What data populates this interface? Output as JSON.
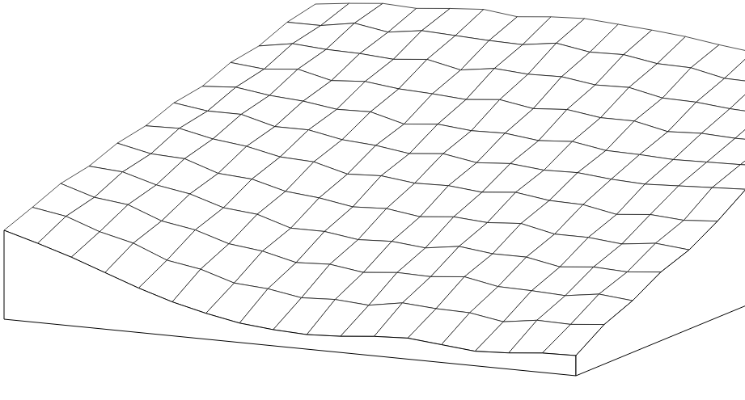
{
  "chart_data": {
    "type": "surface",
    "color": "#000000",
    "grid": false,
    "tick_labels": false,
    "z": [
      [
        110,
        98,
        85,
        70,
        55,
        42,
        32,
        24,
        20,
        18,
        20,
        24,
        26,
        22,
        18,
        20,
        24,
        25
      ],
      [
        124,
        117,
        102,
        92,
        75,
        68,
        55,
        52,
        45,
        47,
        44,
        51,
        48,
        47,
        40,
        46,
        45,
        49
      ],
      [
        139,
        126,
        121,
        105,
        98,
        85,
        80,
        70,
        72,
        66,
        70,
        69,
        73,
        65,
        64,
        62,
        68,
        64
      ],
      [
        146,
        143,
        131,
        124,
        111,
        107,
        94,
        94,
        88,
        90,
        86,
        92,
        87,
        87,
        79,
        83,
        81,
        85
      ],
      [
        160,
        151,
        149,
        135,
        132,
        121,
        117,
        110,
        112,
        106,
        110,
        107,
        110,
        101,
        101,
        97,
        102,
        98
      ],
      [
        167,
        168,
        159,
        154,
        145,
        143,
        132,
        134,
        129,
        130,
        126,
        130,
        124,
        123,
        115,
        119,
        116,
        119
      ],
      [
        181,
        175,
        175,
        164,
        164,
        156,
        153,
        147,
        151,
        144,
        147,
        143,
        144,
        140,
        138,
        140,
        142,
        144
      ],
      [
        187,
        190,
        184,
        181,
        175,
        176,
        165,
        169,
        165,
        166,
        161,
        164,
        157,
        156,
        154,
        155,
        156,
        158
      ],
      [
        202,
        198,
        202,
        192,
        195,
        190,
        188,
        185,
        189,
        182,
        185,
        179,
        179,
        170,
        172,
        170,
        170,
        170
      ],
      [
        208,
        215,
        212,
        211,
        208,
        212,
        203,
        209,
        206,
        207,
        201,
        202,
        193,
        192,
        188,
        186,
        186,
        186
      ],
      [
        223,
        223,
        230,
        223,
        229,
        227,
        225,
        224,
        230,
        223,
        224,
        217,
        216,
        207,
        206,
        203,
        202,
        200
      ],
      [
        231,
        236,
        240,
        238,
        242,
        245,
        240,
        244,
        246,
        243,
        240,
        236,
        230,
        225,
        220,
        218,
        215,
        212
      ]
    ]
  }
}
